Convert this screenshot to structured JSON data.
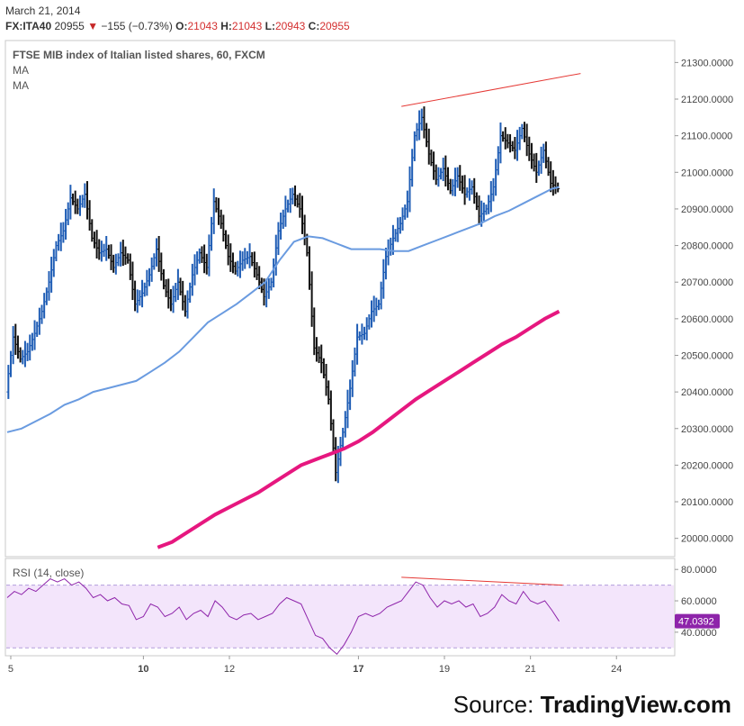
{
  "header": {
    "date": "March 21, 2014",
    "symbol": "FX:ITA40",
    "last": "20955",
    "change": "−155 (−0.73%)",
    "o_label": "O:",
    "o": "21043",
    "h_label": "H:",
    "h": "21043",
    "l_label": "L:",
    "l": "20943",
    "c_label": "C:",
    "c": "20955"
  },
  "source": {
    "prefix": "Source: ",
    "brand": "TradingView.com"
  },
  "colors": {
    "up": "#1f5db5",
    "down": "#111111",
    "ma_short": "#6a9be0",
    "ma_long": "#e6177f",
    "rsi": "#8e24aa",
    "rsi_band": "#f3e5fb",
    "trend": "#e53935"
  },
  "chart_data": [
    {
      "type": "candlestick-ohlc",
      "title": "FTSE MIB index of Italian listed shares, 60, FXCM",
      "legend": [
        "MA",
        "MA"
      ],
      "ylim": [
        19950,
        21360
      ],
      "yticks": [
        "21300.0000",
        "21200.0000",
        "21100.0000",
        "21000.0000",
        "20900.0000",
        "20800.0000",
        "20700.0000",
        "20600.0000",
        "20500.0000",
        "20400.0000",
        "20300.0000",
        "20200.0000",
        "20100.0000",
        "20000.0000"
      ],
      "xlim": [
        0,
        185
      ],
      "xticks": [
        {
          "x": 1,
          "label": "5"
        },
        {
          "x": 38,
          "label": "10"
        },
        {
          "x": 62,
          "label": "12"
        },
        {
          "x": 98,
          "label": "17"
        },
        {
          "x": 122,
          "label": "19"
        },
        {
          "x": 146,
          "label": "21"
        },
        {
          "x": 170,
          "label": "24"
        }
      ],
      "close_path": [
        [
          0,
          20400
        ],
        [
          2,
          20550
        ],
        [
          4,
          20490
        ],
        [
          6,
          20510
        ],
        [
          8,
          20560
        ],
        [
          10,
          20620
        ],
        [
          12,
          20700
        ],
        [
          14,
          20800
        ],
        [
          16,
          20840
        ],
        [
          18,
          20930
        ],
        [
          20,
          20900
        ],
        [
          22,
          20940
        ],
        [
          24,
          20820
        ],
        [
          26,
          20780
        ],
        [
          28,
          20790
        ],
        [
          30,
          20740
        ],
        [
          32,
          20780
        ],
        [
          34,
          20760
        ],
        [
          36,
          20640
        ],
        [
          38,
          20670
        ],
        [
          40,
          20720
        ],
        [
          42,
          20790
        ],
        [
          44,
          20690
        ],
        [
          46,
          20640
        ],
        [
          48,
          20700
        ],
        [
          50,
          20620
        ],
        [
          52,
          20720
        ],
        [
          54,
          20780
        ],
        [
          56,
          20740
        ],
        [
          58,
          20920
        ],
        [
          60,
          20860
        ],
        [
          62,
          20770
        ],
        [
          64,
          20730
        ],
        [
          66,
          20760
        ],
        [
          68,
          20770
        ],
        [
          70,
          20720
        ],
        [
          72,
          20660
        ],
        [
          74,
          20700
        ],
        [
          76,
          20840
        ],
        [
          78,
          20900
        ],
        [
          80,
          20940
        ],
        [
          82,
          20900
        ],
        [
          84,
          20780
        ],
        [
          86,
          20520
        ],
        [
          88,
          20480
        ],
        [
          90,
          20380
        ],
        [
          92,
          20180
        ],
        [
          94,
          20290
        ],
        [
          96,
          20410
        ],
        [
          98,
          20550
        ],
        [
          100,
          20560
        ],
        [
          102,
          20620
        ],
        [
          104,
          20640
        ],
        [
          106,
          20770
        ],
        [
          108,
          20820
        ],
        [
          110,
          20860
        ],
        [
          112,
          20920
        ],
        [
          114,
          21100
        ],
        [
          116,
          21150
        ],
        [
          118,
          21050
        ],
        [
          120,
          20980
        ],
        [
          122,
          21010
        ],
        [
          124,
          20950
        ],
        [
          126,
          20990
        ],
        [
          128,
          20940
        ],
        [
          130,
          20960
        ],
        [
          132,
          20880
        ],
        [
          134,
          20900
        ],
        [
          136,
          20960
        ],
        [
          138,
          21100
        ],
        [
          140,
          21080
        ],
        [
          142,
          21060
        ],
        [
          144,
          21120
        ],
        [
          146,
          21050
        ],
        [
          148,
          21000
        ],
        [
          150,
          21060
        ],
        [
          152,
          20970
        ],
        [
          154,
          20955
        ]
      ],
      "ma_short": [
        [
          0,
          20290
        ],
        [
          4,
          20300
        ],
        [
          8,
          20320
        ],
        [
          12,
          20340
        ],
        [
          16,
          20365
        ],
        [
          20,
          20380
        ],
        [
          24,
          20400
        ],
        [
          28,
          20410
        ],
        [
          32,
          20420
        ],
        [
          36,
          20430
        ],
        [
          40,
          20455
        ],
        [
          44,
          20480
        ],
        [
          48,
          20510
        ],
        [
          52,
          20550
        ],
        [
          56,
          20590
        ],
        [
          60,
          20615
        ],
        [
          64,
          20640
        ],
        [
          68,
          20670
        ],
        [
          72,
          20700
        ],
        [
          76,
          20760
        ],
        [
          80,
          20810
        ],
        [
          84,
          20825
        ],
        [
          88,
          20820
        ],
        [
          92,
          20805
        ],
        [
          96,
          20790
        ],
        [
          100,
          20790
        ],
        [
          104,
          20790
        ],
        [
          108,
          20785
        ],
        [
          112,
          20785
        ],
        [
          116,
          20800
        ],
        [
          120,
          20815
        ],
        [
          124,
          20830
        ],
        [
          128,
          20845
        ],
        [
          132,
          20860
        ],
        [
          136,
          20880
        ],
        [
          140,
          20895
        ],
        [
          144,
          20915
        ],
        [
          148,
          20935
        ],
        [
          152,
          20955
        ],
        [
          154,
          20960
        ]
      ],
      "ma_long": [
        [
          42,
          19975
        ],
        [
          46,
          19990
        ],
        [
          50,
          20015
        ],
        [
          54,
          20040
        ],
        [
          58,
          20065
        ],
        [
          62,
          20085
        ],
        [
          66,
          20105
        ],
        [
          70,
          20125
        ],
        [
          74,
          20150
        ],
        [
          78,
          20175
        ],
        [
          82,
          20200
        ],
        [
          86,
          20215
        ],
        [
          90,
          20230
        ],
        [
          94,
          20245
        ],
        [
          98,
          20265
        ],
        [
          102,
          20290
        ],
        [
          106,
          20320
        ],
        [
          110,
          20350
        ],
        [
          114,
          20380
        ],
        [
          118,
          20405
        ],
        [
          122,
          20430
        ],
        [
          126,
          20455
        ],
        [
          130,
          20480
        ],
        [
          134,
          20505
        ],
        [
          138,
          20530
        ],
        [
          142,
          20550
        ],
        [
          146,
          20575
        ],
        [
          150,
          20600
        ],
        [
          154,
          20620
        ]
      ],
      "trendline": [
        [
          110,
          21180
        ],
        [
          160,
          21270
        ]
      ]
    },
    {
      "type": "line",
      "title": "RSI (14, close)",
      "ylim": [
        25,
        87
      ],
      "yticks": [
        "80.0000",
        "60.0000",
        "40.0000"
      ],
      "band": [
        30,
        70
      ],
      "last_value": "47.0392",
      "values": [
        [
          0,
          62
        ],
        [
          2,
          66
        ],
        [
          4,
          64
        ],
        [
          6,
          68
        ],
        [
          8,
          66
        ],
        [
          10,
          70
        ],
        [
          12,
          74
        ],
        [
          14,
          72
        ],
        [
          16,
          74
        ],
        [
          18,
          70
        ],
        [
          20,
          72
        ],
        [
          22,
          68
        ],
        [
          24,
          62
        ],
        [
          26,
          64
        ],
        [
          28,
          60
        ],
        [
          30,
          62
        ],
        [
          32,
          58
        ],
        [
          34,
          57
        ],
        [
          36,
          48
        ],
        [
          38,
          50
        ],
        [
          40,
          58
        ],
        [
          42,
          56
        ],
        [
          44,
          50
        ],
        [
          46,
          52
        ],
        [
          48,
          56
        ],
        [
          50,
          48
        ],
        [
          52,
          52
        ],
        [
          54,
          54
        ],
        [
          56,
          50
        ],
        [
          58,
          60
        ],
        [
          60,
          56
        ],
        [
          62,
          50
        ],
        [
          64,
          48
        ],
        [
          66,
          51
        ],
        [
          68,
          52
        ],
        [
          70,
          48
        ],
        [
          72,
          50
        ],
        [
          74,
          52
        ],
        [
          76,
          58
        ],
        [
          78,
          62
        ],
        [
          80,
          60
        ],
        [
          82,
          58
        ],
        [
          84,
          48
        ],
        [
          86,
          38
        ],
        [
          88,
          36
        ],
        [
          90,
          30
        ],
        [
          92,
          26
        ],
        [
          94,
          32
        ],
        [
          96,
          40
        ],
        [
          98,
          50
        ],
        [
          100,
          52
        ],
        [
          102,
          50
        ],
        [
          104,
          52
        ],
        [
          106,
          56
        ],
        [
          108,
          58
        ],
        [
          110,
          60
        ],
        [
          112,
          66
        ],
        [
          114,
          72
        ],
        [
          116,
          70
        ],
        [
          118,
          62
        ],
        [
          120,
          56
        ],
        [
          122,
          60
        ],
        [
          124,
          58
        ],
        [
          126,
          60
        ],
        [
          128,
          56
        ],
        [
          130,
          58
        ],
        [
          132,
          50
        ],
        [
          134,
          52
        ],
        [
          136,
          56
        ],
        [
          138,
          64
        ],
        [
          140,
          60
        ],
        [
          142,
          58
        ],
        [
          144,
          66
        ],
        [
          146,
          60
        ],
        [
          148,
          58
        ],
        [
          150,
          60
        ],
        [
          152,
          54
        ],
        [
          154,
          47
        ]
      ],
      "trendline": [
        [
          110,
          75
        ],
        [
          155,
          70
        ]
      ]
    }
  ]
}
